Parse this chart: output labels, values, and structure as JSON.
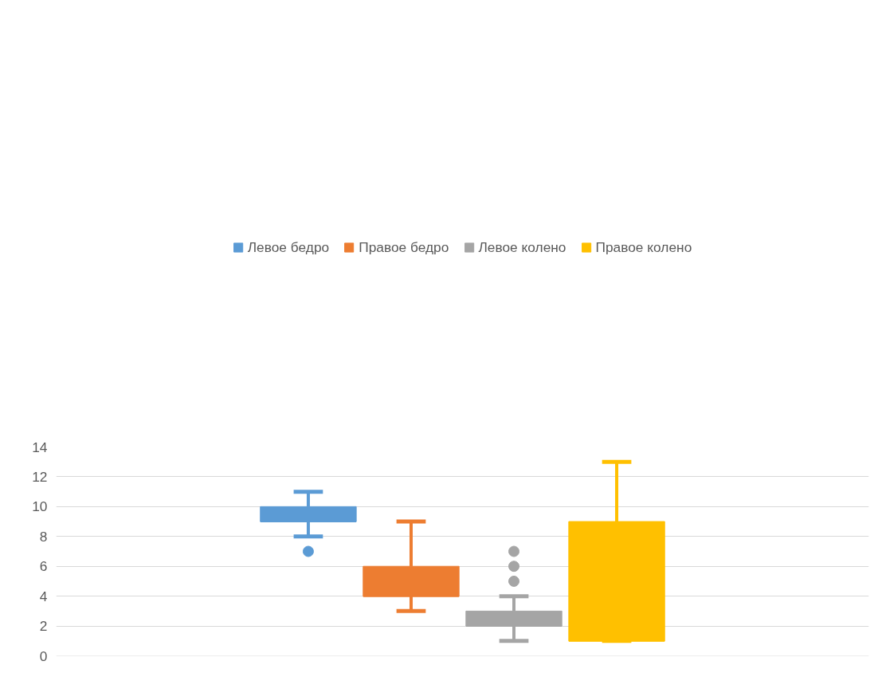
{
  "chart_data": {
    "type": "box",
    "categories": [
      null
    ],
    "series": [
      {
        "name": "Левое бедро",
        "color": "#5b9bd5",
        "boxes": [
          {
            "low": 8,
            "q1": 9,
            "median": 9,
            "q3": 10,
            "high": 11,
            "outliers": [
              7
            ]
          }
        ]
      },
      {
        "name": "Правое бедро",
        "color": "#ed7d31",
        "boxes": [
          {
            "low": 3,
            "q1": 4,
            "median": 4,
            "q3": 6,
            "high": 9
          }
        ]
      },
      {
        "name": "Левое колено",
        "color": "#a5a5a5",
        "boxes": [
          {
            "low": 1,
            "q1": 2,
            "median": 2,
            "q3": 3,
            "high": 4,
            "outliers": [
              5,
              6,
              7
            ]
          }
        ]
      },
      {
        "name": "Правое колено",
        "color": "#ffc000",
        "boxes": [
          {
            "low": 1,
            "q1": 1,
            "median": 1,
            "q3": 9,
            "high": 13
          }
        ]
      }
    ],
    "ylim": [
      0,
      14
    ],
    "yticks": [
      0,
      2,
      4,
      6,
      8,
      10,
      12,
      14
    ],
    "grid": "y",
    "legend": "top",
    "tick_labels": "y"
  }
}
